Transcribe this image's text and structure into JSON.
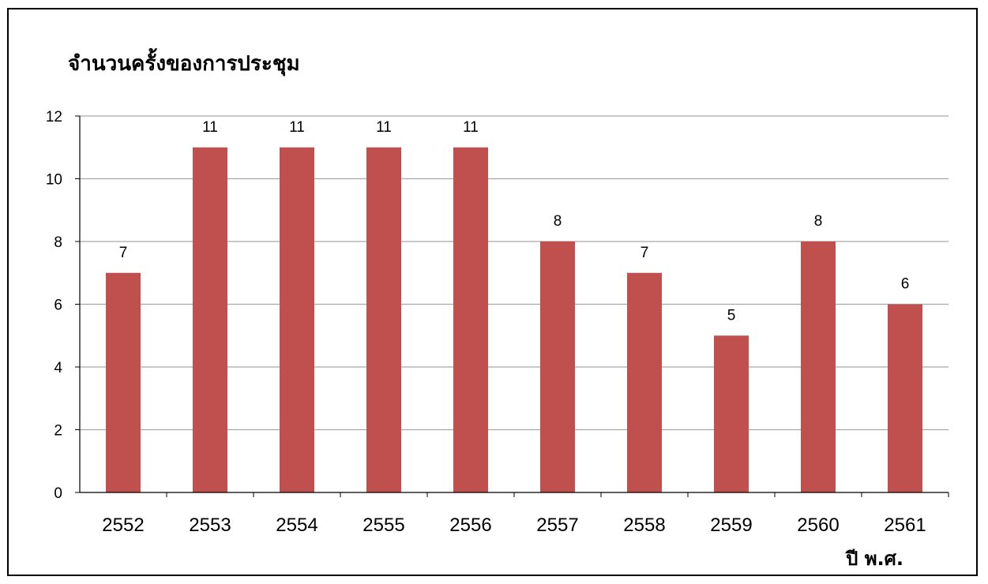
{
  "chart_data": {
    "type": "bar",
    "title": "จำนวนครั้งของการประชุม",
    "xlabel": "ปี พ.ศ.",
    "ylabel": "",
    "categories": [
      "2552",
      "2553",
      "2554",
      "2555",
      "2556",
      "2557",
      "2558",
      "2559",
      "2560",
      "2561"
    ],
    "values": [
      7,
      11,
      11,
      11,
      11,
      8,
      7,
      5,
      8,
      6
    ],
    "data_labels": [
      "7",
      "11",
      "11",
      "11",
      "11",
      "8",
      "7",
      "5",
      "8",
      "6"
    ],
    "ylim": [
      0,
      12
    ],
    "yticks": [
      0,
      2,
      4,
      6,
      8,
      10,
      12
    ],
    "ytick_labels": [
      "0",
      "2",
      "4",
      "6",
      "8",
      "10",
      "12"
    ],
    "grid": true,
    "legend": "none",
    "bar_color": "#c0504d",
    "grid_color": "#a6a6a6",
    "axis_color": "#000000"
  }
}
